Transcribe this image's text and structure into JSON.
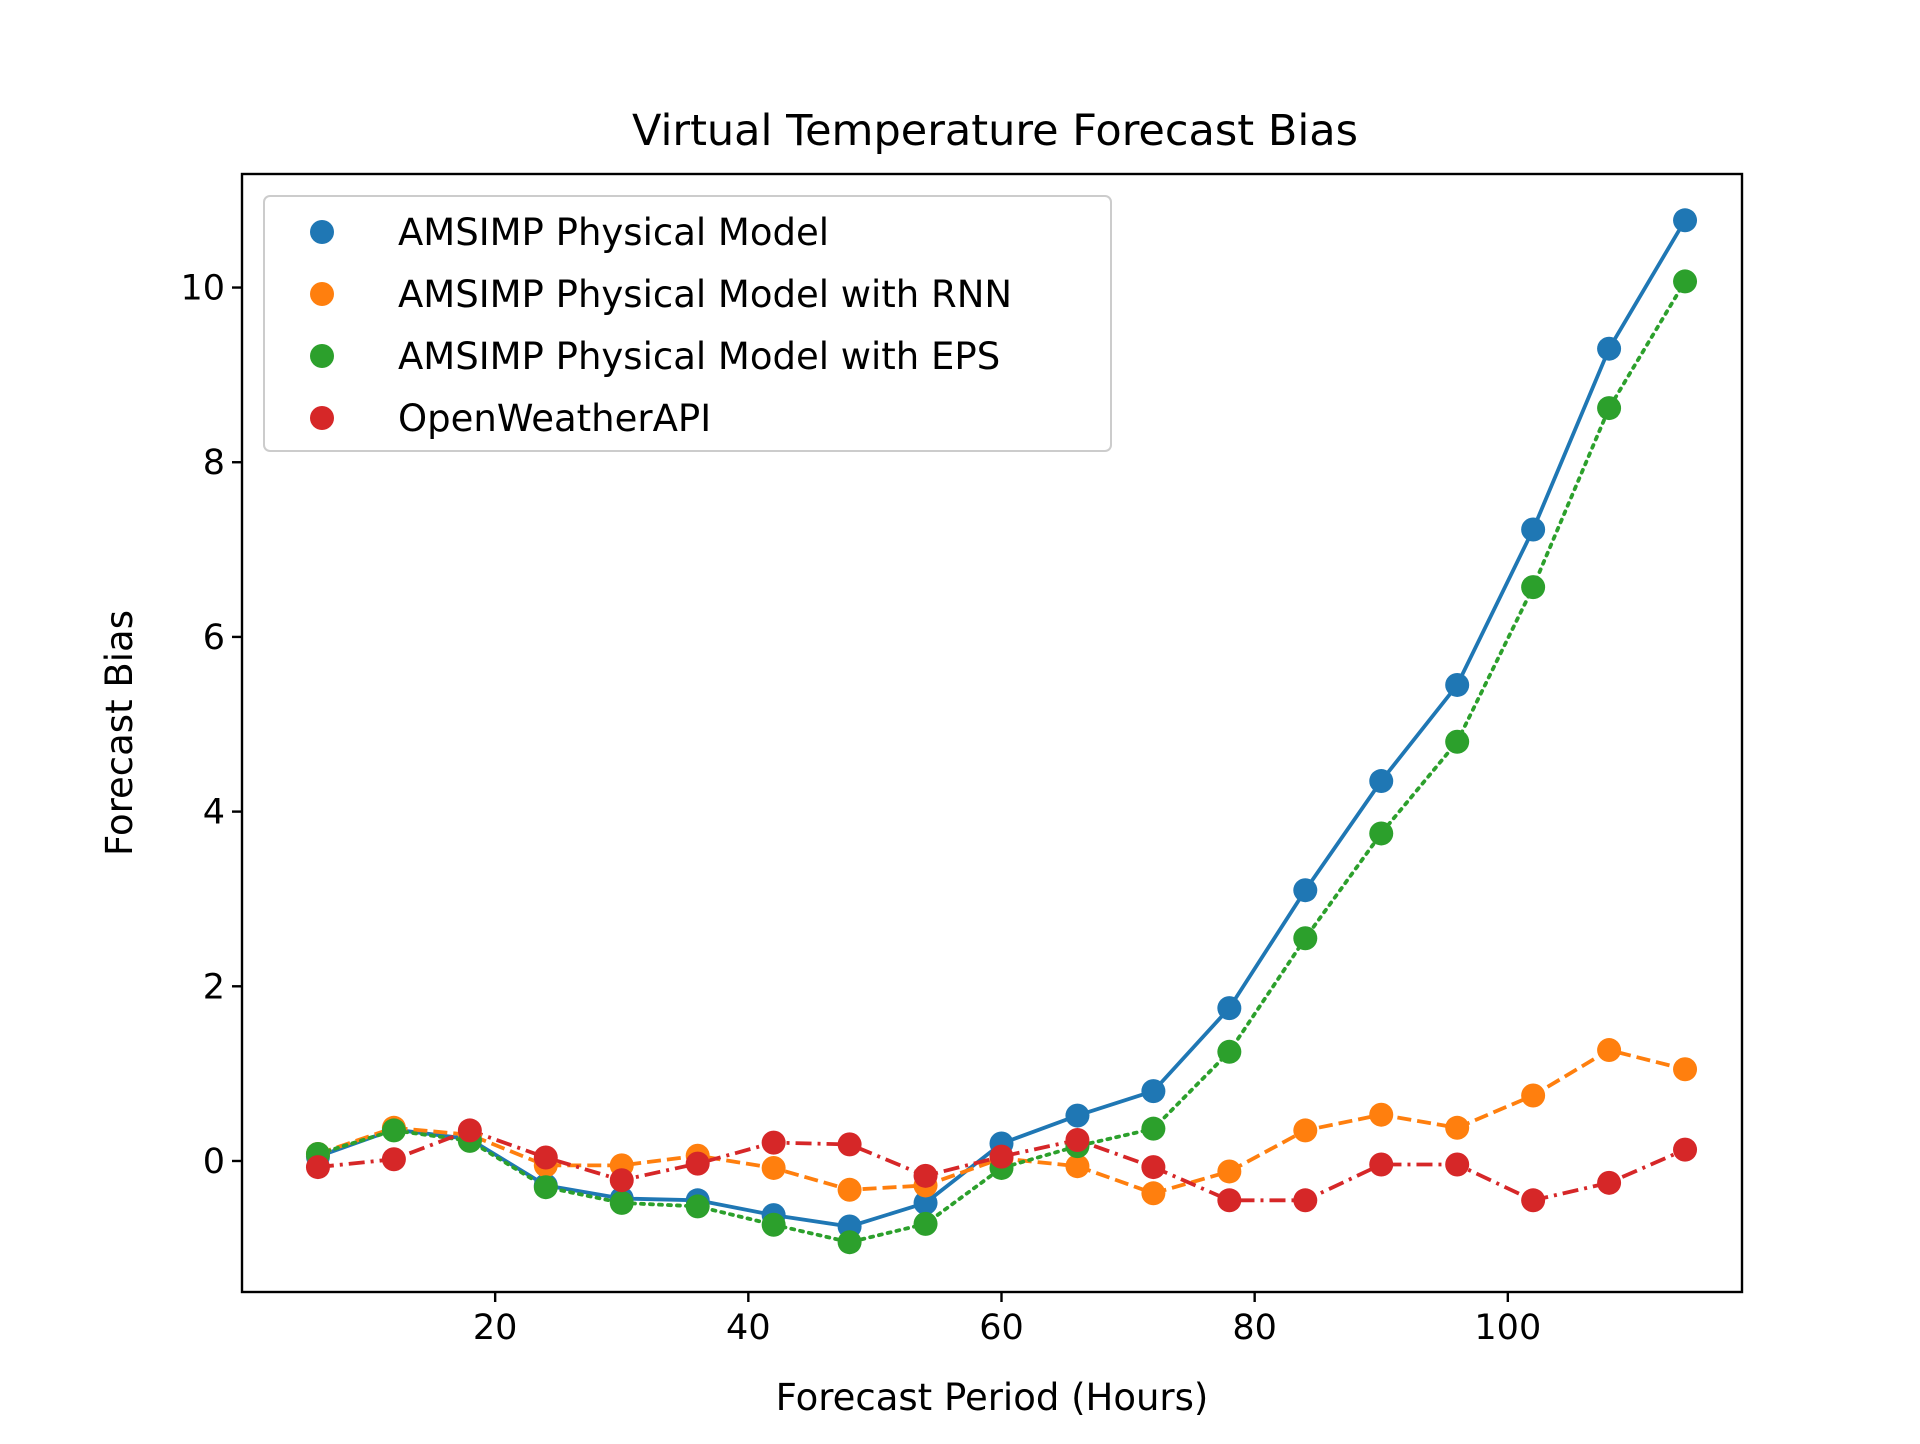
{
  "chart_data": {
    "type": "line",
    "title": "Virtual Temperature Forecast Bias",
    "xlabel": "Forecast Period (Hours)",
    "ylabel": "Forecast Bias",
    "xlim": [
      0,
      118.5
    ],
    "ylim": [
      -1.5,
      11.3
    ],
    "x_ticks": [
      20,
      40,
      60,
      80,
      100
    ],
    "y_ticks": [
      0,
      2,
      4,
      6,
      8,
      10
    ],
    "grid": false,
    "legend_position": "upper-left",
    "x": [
      6,
      12,
      18,
      24,
      30,
      36,
      42,
      48,
      54,
      60,
      66,
      72,
      78,
      84,
      90,
      96,
      102,
      108,
      114
    ],
    "series": [
      {
        "name": "AMSIMP Physical Model",
        "color": "#1f77b4",
        "line_style": "solid",
        "values": [
          0.05,
          0.36,
          0.25,
          -0.28,
          -0.43,
          -0.45,
          -0.62,
          -0.75,
          -0.48,
          0.2,
          0.52,
          0.8,
          1.75,
          3.1,
          4.35,
          5.45,
          7.23,
          9.3,
          10.77
        ]
      },
      {
        "name": "AMSIMP Physical Model with RNN",
        "color": "#ff7f0e",
        "line_style": "dashed",
        "values": [
          0.08,
          0.38,
          0.3,
          -0.05,
          -0.05,
          0.06,
          -0.08,
          -0.33,
          -0.28,
          0.03,
          -0.06,
          -0.37,
          -0.12,
          0.35,
          0.53,
          0.38,
          0.75,
          1.27,
          1.05
        ]
      },
      {
        "name": "AMSIMP Physical Model with EPS",
        "color": "#2ca02c",
        "line_style": "dotted",
        "values": [
          0.08,
          0.35,
          0.23,
          -0.3,
          -0.48,
          -0.52,
          -0.73,
          -0.93,
          -0.72,
          -0.08,
          0.17,
          0.37,
          1.25,
          2.55,
          3.75,
          4.8,
          6.57,
          8.62,
          10.07
        ]
      },
      {
        "name": "OpenWeatherAPI",
        "color": "#d62728",
        "line_style": "dashdot",
        "values": [
          -0.07,
          0.02,
          0.35,
          0.04,
          -0.22,
          -0.03,
          0.21,
          0.19,
          -0.17,
          0.05,
          0.24,
          -0.07,
          -0.45,
          -0.45,
          -0.04,
          -0.04,
          -0.45,
          -0.25,
          0.13
        ]
      }
    ]
  }
}
